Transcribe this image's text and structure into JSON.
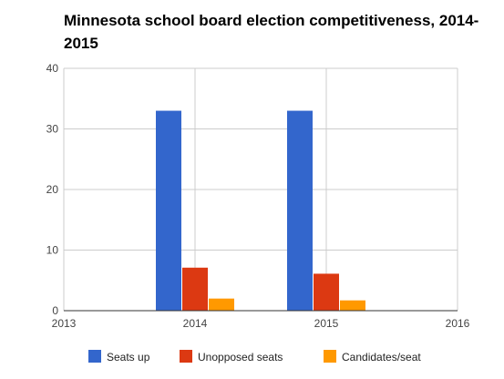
{
  "chart_data": {
    "type": "bar",
    "title": "Minnesota school board election competitiveness, 2014-2015",
    "xlabel": "",
    "ylabel": "",
    "x_ticks": [
      "2013",
      "2014",
      "2015",
      "2016"
    ],
    "y_ticks": [
      "0",
      "10",
      "20",
      "30",
      "40"
    ],
    "xlim": [
      2013,
      2016
    ],
    "ylim": [
      0,
      40
    ],
    "categories": [
      "2014",
      "2015"
    ],
    "series": [
      {
        "name": "Seats up",
        "color": "#3366cc",
        "values": [
          33,
          33
        ]
      },
      {
        "name": "Unopposed seats",
        "color": "#dc3912",
        "values": [
          7.1,
          6.1
        ]
      },
      {
        "name": "Candidates/seat",
        "color": "#ff9900",
        "values": [
          2.0,
          1.7
        ]
      }
    ],
    "grid": true,
    "legend_position": "bottom"
  }
}
